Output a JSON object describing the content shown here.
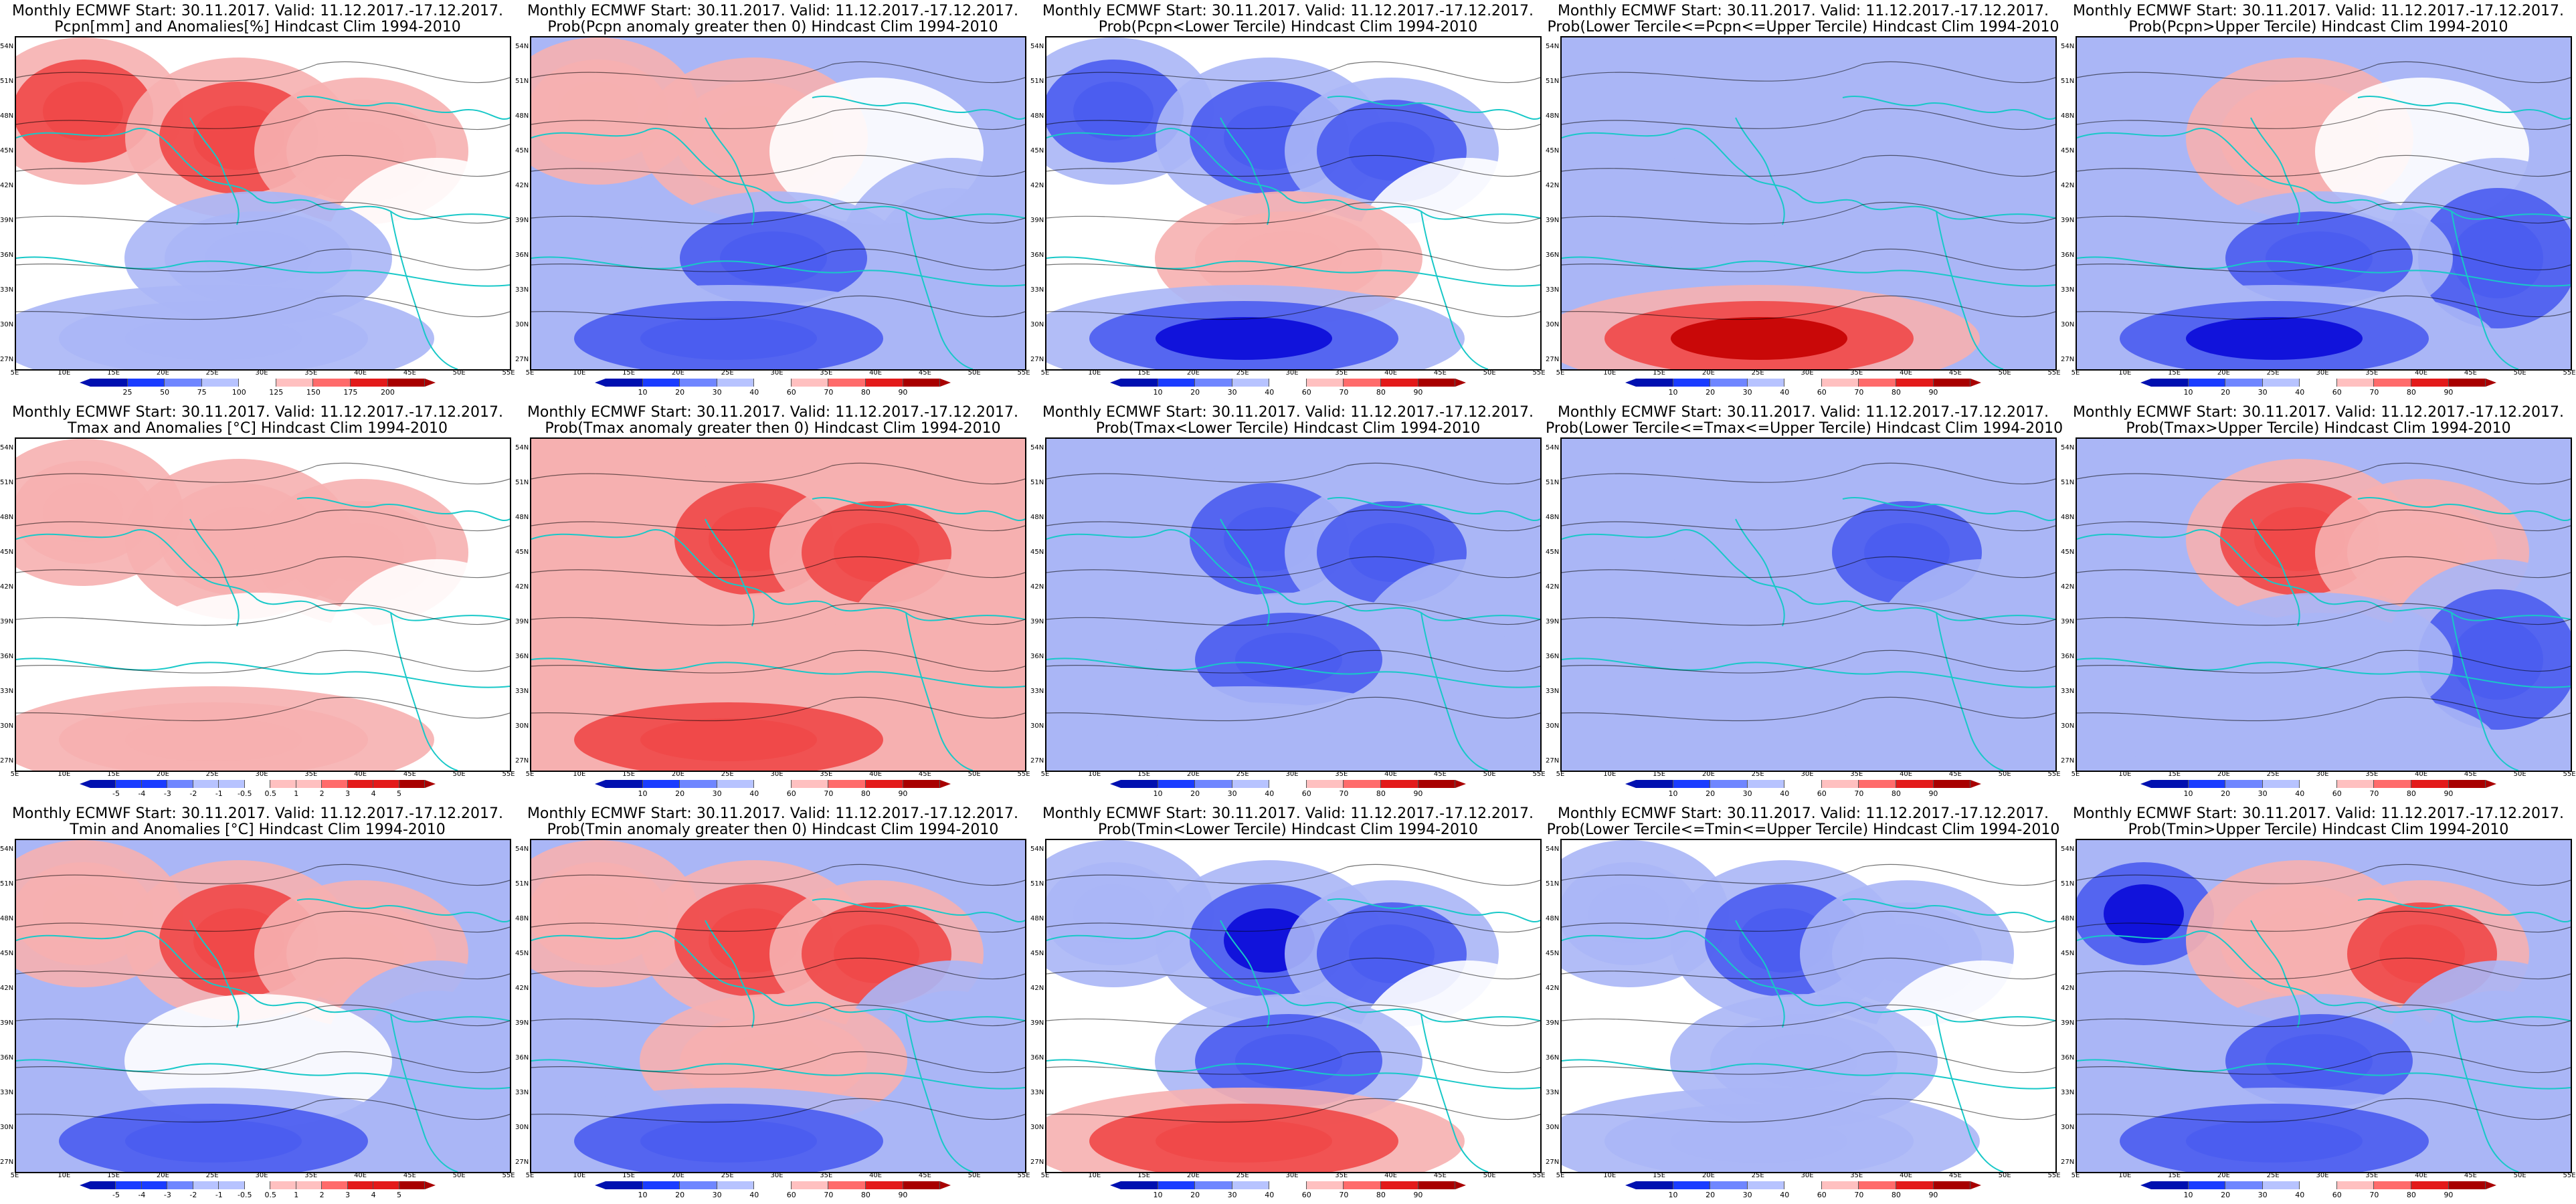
{
  "colors": {
    "dark_blue": "#0a0ad8",
    "mid_blue": "#4a5cf0",
    "light_blue": "#aab6f6",
    "white": "#ffffff",
    "light_red": "#f6b0b0",
    "mid_red": "#f04848",
    "dark_red": "#c40000",
    "coast": "#18c8c8",
    "contour": "#000000"
  },
  "lat_labels": [
    "54N",
    "51N",
    "48N",
    "45N",
    "42N",
    "39N",
    "36N",
    "33N",
    "30N",
    "27N"
  ],
  "lon_labels": [
    "5E",
    "10E",
    "15E",
    "20E",
    "25E",
    "30E",
    "35E",
    "40E",
    "45E",
    "50E",
    "55E"
  ],
  "colorbars": {
    "pcpn": [
      "25",
      "50",
      "75",
      "100",
      "125",
      "150",
      "175",
      "200"
    ],
    "anom": [
      "-5",
      "-4",
      "-3",
      "-2",
      "-1",
      "-0.5",
      "0.5",
      "1",
      "2",
      "3",
      "4",
      "5"
    ],
    "prob": [
      "10",
      "20",
      "30",
      "40",
      "60",
      "70",
      "80",
      "90"
    ]
  },
  "panels": [
    {
      "id": "p00",
      "line1": "Monthly ECMWF Start: 30.11.2017. Valid: 11.12.2017.-17.12.2017.",
      "line2": "Pcpn[mm] and Anomalies[%] Hindcast Clim 1994-2010",
      "scale": "pcpn",
      "pattern": [
        2,
        2,
        1,
        0,
        -1,
        -1
      ]
    },
    {
      "id": "p01",
      "line1": "Monthly ECMWF Start: 30.11.2017. Valid: 11.12.2017.-17.12.2017.",
      "line2": "Prob(Pcpn anomaly greater then 0) Hindcast Clim 1994-2010",
      "scale": "prob",
      "pattern": [
        1,
        1,
        0,
        -1,
        -2,
        -2
      ]
    },
    {
      "id": "p02",
      "line1": "Monthly ECMWF Start: 30.11.2017. Valid: 11.12.2017.-17.12.2017.",
      "line2": "Prob(Pcpn<Lower Tercile) Hindcast Clim 1994-2010",
      "scale": "prob",
      "pattern": [
        -2,
        -2,
        -2,
        0,
        1,
        -3
      ]
    },
    {
      "id": "p03",
      "line1": "Monthly ECMWF Start: 30.11.2017. Valid: 11.12.2017.-17.12.2017.",
      "line2": "Prob(Lower Tercile<=Pcpn<=Upper Tercile) Hindcast Clim 1994-2010",
      "scale": "prob",
      "pattern": [
        -1,
        -1,
        -1,
        -1,
        -1,
        3
      ]
    },
    {
      "id": "p04",
      "line1": "Monthly ECMWF Start: 30.11.2017. Valid: 11.12.2017.-17.12.2017.",
      "line2": "Prob(Pcpn>Upper Tercile) Hindcast Clim 1994-2010",
      "scale": "prob",
      "pattern": [
        -1,
        1,
        0,
        -2,
        -2,
        -3
      ]
    },
    {
      "id": "p10",
      "line1": "Monthly ECMWF Start: 30.11.2017. Valid: 11.12.2017.-17.12.2017.",
      "line2": "Tmax and Anomalies [°C] Hindcast Clim 1994-2010",
      "scale": "anom",
      "pattern": [
        1,
        1,
        1,
        0,
        0,
        1
      ]
    },
    {
      "id": "p11",
      "line1": "Monthly ECMWF Start: 30.11.2017. Valid: 11.12.2017.-17.12.2017.",
      "line2": "Prob(Tmax anomaly greater then 0) Hindcast Clim 1994-2010",
      "scale": "prob",
      "pattern": [
        1,
        2,
        2,
        1,
        1,
        2
      ]
    },
    {
      "id": "p12",
      "line1": "Monthly ECMWF Start: 30.11.2017. Valid: 11.12.2017.-17.12.2017.",
      "line2": "Prob(Tmax<Lower Tercile) Hindcast Clim 1994-2010",
      "scale": "prob",
      "pattern": [
        -1,
        -2,
        -2,
        -1,
        -2,
        -1
      ]
    },
    {
      "id": "p13",
      "line1": "Monthly ECMWF Start: 30.11.2017. Valid: 11.12.2017.-17.12.2017.",
      "line2": "Prob(Lower Tercile<=Tmax<=Upper Tercile) Hindcast Clim 1994-2010",
      "scale": "prob",
      "pattern": [
        -1,
        -1,
        -2,
        -1,
        -1,
        -1
      ]
    },
    {
      "id": "p14",
      "line1": "Monthly ECMWF Start: 30.11.2017. Valid: 11.12.2017.-17.12.2017.",
      "line2": "Prob(Tmax>Upper Tercile) Hindcast Clim 1994-2010",
      "scale": "prob",
      "pattern": [
        -1,
        2,
        1,
        -2,
        -1,
        -1
      ]
    },
    {
      "id": "p20",
      "line1": "Monthly ECMWF Start: 30.11.2017. Valid: 11.12.2017.-17.12.2017.",
      "line2": "Tmin and Anomalies [°C] Hindcast Clim 1994-2010",
      "scale": "anom",
      "pattern": [
        1,
        2,
        1,
        -1,
        0,
        -2
      ]
    },
    {
      "id": "p21",
      "line1": "Monthly ECMWF Start: 30.11.2017. Valid: 11.12.2017.-17.12.2017.",
      "line2": "Prob(Tmin anomaly greater then 0) Hindcast Clim 1994-2010",
      "scale": "prob",
      "pattern": [
        1,
        2,
        2,
        -1,
        1,
        -2
      ]
    },
    {
      "id": "p22",
      "line1": "Monthly ECMWF Start: 30.11.2017. Valid: 11.12.2017.-17.12.2017.",
      "line2": "Prob(Tmin<Lower Tercile) Hindcast Clim 1994-2010",
      "scale": "prob",
      "pattern": [
        -1,
        -3,
        -2,
        0,
        -2,
        2
      ]
    },
    {
      "id": "p23",
      "line1": "Monthly ECMWF Start: 30.11.2017. Valid: 11.12.2017.-17.12.2017.",
      "line2": "Prob(Lower Tercile<=Tmin<=Upper Tercile) Hindcast Clim 1994-2010",
      "scale": "prob",
      "pattern": [
        -1,
        -2,
        -1,
        0,
        -1,
        -1
      ]
    },
    {
      "id": "p24",
      "line1": "Monthly ECMWF Start: 30.11.2017. Valid: 11.12.2017.-17.12.2017.",
      "line2": "Prob(Tmin>Upper Tercile) Hindcast Clim 1994-2010",
      "scale": "prob",
      "pattern": [
        -3,
        1,
        2,
        -1,
        -2,
        -2
      ]
    }
  ]
}
